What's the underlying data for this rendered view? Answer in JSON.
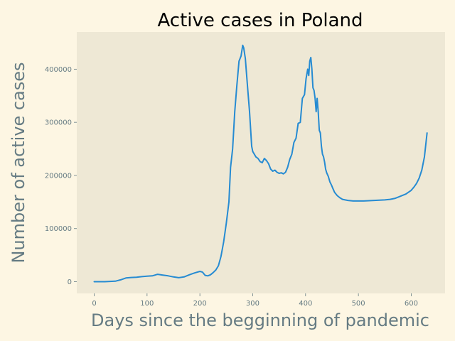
{
  "chart_data": {
    "type": "line",
    "title": "Active cases in Poland",
    "xlabel": "Days since the begginning of pandemic",
    "ylabel": "Number of active cases",
    "xlim": [
      -33,
      664
    ],
    "ylim": [
      -22000,
      470000
    ],
    "xticks": [
      0,
      100,
      200,
      300,
      400,
      500,
      600
    ],
    "yticks": [
      0,
      100000,
      200000,
      300000,
      400000
    ],
    "grid": false,
    "legend": "none",
    "colors": {
      "figure_background": "#fdf6e3",
      "plot_background": "#eee8d5",
      "line": "#268bd2",
      "tick_text": "#657b83",
      "title_text": "#000000"
    },
    "series": [
      {
        "x": [
          0,
          20,
          40,
          50,
          60,
          70,
          80,
          90,
          100,
          110,
          120,
          130,
          140,
          150,
          160,
          170,
          180,
          190,
          200,
          205,
          210,
          215,
          220,
          225,
          230,
          235,
          240,
          245,
          250,
          255,
          258,
          262,
          266,
          270,
          274,
          278,
          281,
          283,
          286,
          290,
          294,
          298,
          300,
          303,
          306,
          310,
          314,
          318,
          322,
          326,
          330,
          334,
          338,
          342,
          346,
          350,
          354,
          358,
          362,
          366,
          370,
          374,
          378,
          382,
          386,
          390,
          394,
          398,
          401,
          404,
          406,
          408,
          410,
          412,
          414,
          416,
          418,
          420,
          422,
          424,
          426,
          428,
          430,
          432,
          434,
          436,
          438,
          440,
          443,
          446,
          449,
          452,
          455,
          460,
          465,
          470,
          475,
          480,
          490,
          500,
          510,
          520,
          530,
          540,
          550,
          560,
          570,
          580,
          590,
          600,
          605,
          610,
          615,
          620,
          625,
          630
        ],
        "y": [
          0,
          0,
          1000,
          3500,
          7000,
          8000,
          8500,
          9500,
          10500,
          11000,
          14000,
          12500,
          11000,
          9000,
          7500,
          9000,
          13000,
          16500,
          19500,
          18000,
          12000,
          11000,
          13000,
          17000,
          22000,
          30000,
          48000,
          75000,
          110000,
          150000,
          215000,
          250000,
          320000,
          370000,
          415000,
          425000,
          445000,
          440000,
          420000,
          370000,
          320000,
          255000,
          245000,
          240000,
          235000,
          232000,
          226000,
          224000,
          232000,
          228000,
          222000,
          212000,
          208000,
          210000,
          206000,
          204000,
          205000,
          203000,
          206000,
          215000,
          230000,
          240000,
          262000,
          270000,
          298000,
          300000,
          345000,
          352000,
          382000,
          400000,
          388000,
          415000,
          422000,
          400000,
          365000,
          360000,
          345000,
          320000,
          345000,
          320000,
          285000,
          280000,
          255000,
          240000,
          235000,
          225000,
          212000,
          205000,
          198000,
          188000,
          182000,
          175000,
          168000,
          162000,
          158000,
          155000,
          154000,
          153000,
          152000,
          152000,
          152000,
          152500,
          153000,
          153500,
          154000,
          155000,
          157000,
          161000,
          165000,
          172000,
          178000,
          185000,
          195000,
          210000,
          235000,
          280000
        ]
      }
    ]
  }
}
